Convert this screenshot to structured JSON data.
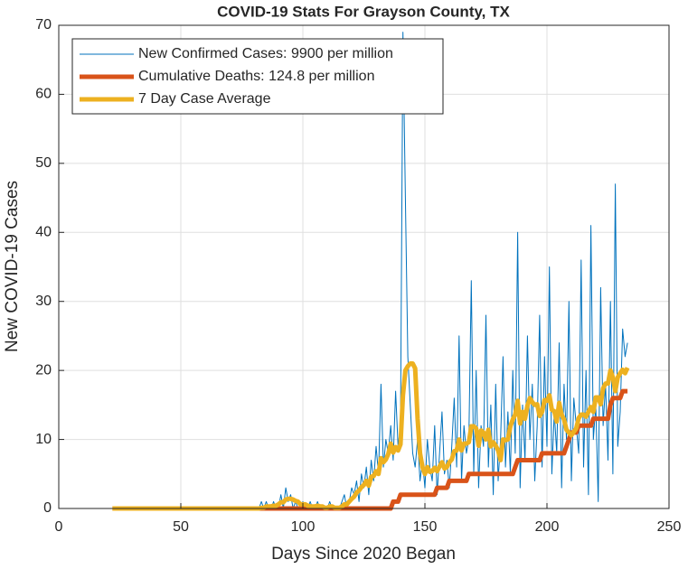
{
  "chart_data": {
    "type": "line",
    "title": "COVID-19 Stats For Grayson County, TX",
    "xlabel": "Days Since 2020 Began",
    "ylabel": "New COVID-19 Cases",
    "xlim": [
      0,
      250
    ],
    "xticks": [
      0,
      50,
      100,
      150,
      200,
      250
    ],
    "ylim": [
      0,
      70
    ],
    "yticks": [
      0,
      10,
      20,
      30,
      40,
      50,
      60,
      70
    ],
    "grid": true,
    "legend_position": "northwest",
    "x": [
      22,
      40,
      60,
      80,
      81,
      82,
      83,
      84,
      85,
      86,
      87,
      88,
      89,
      90,
      91,
      92,
      93,
      94,
      95,
      96,
      97,
      98,
      99,
      100,
      101,
      102,
      103,
      104,
      105,
      106,
      107,
      108,
      109,
      110,
      111,
      112,
      113,
      114,
      115,
      116,
      117,
      118,
      119,
      120,
      121,
      122,
      123,
      124,
      125,
      126,
      127,
      128,
      129,
      130,
      131,
      132,
      133,
      134,
      135,
      136,
      137,
      138,
      139,
      140,
      141,
      142,
      143,
      144,
      145,
      146,
      147,
      148,
      149,
      150,
      151,
      152,
      153,
      154,
      155,
      156,
      157,
      158,
      159,
      160,
      161,
      162,
      163,
      164,
      165,
      166,
      167,
      168,
      169,
      170,
      171,
      172,
      173,
      174,
      175,
      176,
      177,
      178,
      179,
      180,
      181,
      182,
      183,
      184,
      185,
      186,
      187,
      188,
      189,
      190,
      191,
      192,
      193,
      194,
      195,
      196,
      197,
      198,
      199,
      200,
      201,
      202,
      203,
      204,
      205,
      206,
      207,
      208,
      209,
      210,
      211,
      212,
      213,
      214,
      215,
      216,
      217,
      218,
      219,
      220,
      221,
      222,
      223,
      224,
      225,
      226,
      227,
      228,
      229,
      230,
      231,
      232,
      233
    ],
    "series": [
      {
        "name": "New Confirmed Cases: 9900 per million",
        "color": "#0072bd",
        "width": 1,
        "values": [
          0,
          0,
          0,
          0,
          0,
          0,
          1,
          0,
          1,
          0,
          0,
          1,
          0,
          0,
          2,
          0,
          3,
          1,
          2,
          0,
          1,
          0,
          0,
          1,
          0,
          0,
          1,
          0,
          0,
          1,
          0,
          0,
          0,
          0,
          1,
          0,
          0,
          0,
          0,
          1,
          2,
          0,
          1,
          3,
          2,
          4,
          1,
          5,
          3,
          6,
          2,
          7,
          4,
          9,
          5,
          18,
          6,
          10,
          8,
          12,
          7,
          17,
          9,
          12,
          69,
          45,
          22,
          15,
          8,
          6,
          10,
          4,
          7,
          3,
          10,
          6,
          4,
          12,
          2,
          8,
          14,
          5,
          7,
          3,
          9,
          16,
          6,
          25,
          4,
          12,
          8,
          10,
          33,
          5,
          20,
          3,
          12,
          9,
          28,
          6,
          15,
          2,
          18,
          4,
          10,
          22,
          6,
          14,
          5,
          20,
          8,
          40,
          3,
          15,
          7,
          25,
          10,
          18,
          4,
          12,
          28,
          6,
          22,
          9,
          35,
          5,
          14,
          8,
          24,
          3,
          18,
          10,
          30,
          4,
          16,
          12,
          8,
          36,
          6,
          20,
          2,
          41,
          10,
          15,
          1,
          32,
          12,
          18,
          7,
          30,
          5,
          47,
          9,
          14,
          26,
          22,
          24
        ]
      },
      {
        "name": "Cumulative Deaths: 124.8 per million",
        "color": "#d95319",
        "width": 5,
        "values": [
          0,
          0,
          0,
          0,
          0,
          0,
          0,
          0,
          0,
          0,
          0,
          0,
          0,
          0,
          0,
          0,
          0,
          0,
          0,
          0,
          0,
          0,
          0,
          0,
          0,
          0,
          0,
          0,
          0,
          0,
          0,
          0,
          0,
          0,
          0,
          0,
          0,
          0,
          0,
          0,
          0,
          0,
          0,
          0,
          0,
          0,
          0,
          0,
          0,
          0,
          0,
          0,
          0,
          0,
          0,
          0,
          0,
          0,
          0,
          0,
          1,
          1,
          1,
          2,
          2,
          2,
          2,
          2,
          2,
          2,
          2,
          2,
          2,
          2,
          2,
          2,
          2,
          2,
          3,
          3,
          3,
          3,
          3,
          4,
          4,
          4,
          4,
          4,
          4,
          4,
          4,
          5,
          5,
          5,
          5,
          5,
          5,
          5,
          5,
          5,
          5,
          5,
          5,
          5,
          5,
          5,
          5,
          5,
          5,
          5,
          6,
          7,
          7,
          7,
          7,
          7,
          7,
          7,
          7,
          7,
          7,
          8,
          8,
          8,
          8,
          8,
          8,
          8,
          8,
          8,
          8,
          9,
          10,
          11,
          11,
          11,
          12,
          12,
          12,
          12,
          12,
          12,
          13,
          13,
          13,
          13,
          13,
          13,
          13,
          15,
          16,
          16,
          16,
          16,
          17,
          17,
          17
        ]
      },
      {
        "name": "7 Day Case Average",
        "color": "#edb120",
        "width": 5,
        "values": [
          0,
          0,
          0,
          0,
          0,
          0,
          0.1,
          0.1,
          0.3,
          0.3,
          0.3,
          0.4,
          0.4,
          0.6,
          0.9,
          0.9,
          1.3,
          1.4,
          1.4,
          1.3,
          1.1,
          1.0,
          0.6,
          0.6,
          0.6,
          0.4,
          0.3,
          0.3,
          0.3,
          0.4,
          0.3,
          0.3,
          0.1,
          0.1,
          0.3,
          0.3,
          0.1,
          0.1,
          0.1,
          0.3,
          0.6,
          0.6,
          1.0,
          1.4,
          1.7,
          2.3,
          2.6,
          3.1,
          3.4,
          4.0,
          3.3,
          4.6,
          4.7,
          5.4,
          5.0,
          7.3,
          6.7,
          7.1,
          7.9,
          9.4,
          8.1,
          8.9,
          8.4,
          9.3,
          16.4,
          20.0,
          20.6,
          21.0,
          21.0,
          20.3,
          13.0,
          8.0,
          6.0,
          5.0,
          6.0,
          5.3,
          5.4,
          5.9,
          5.4,
          6.1,
          6.7,
          5.8,
          6.0,
          6.7,
          7.1,
          8.3,
          8.4,
          10.0,
          8.4,
          9.4,
          9.4,
          9.6,
          11.9,
          11.9,
          11.6,
          9.1,
          11.3,
          11.0,
          10.0,
          11.4,
          9.0,
          9.6,
          9.1,
          8.4,
          7.0,
          10.0,
          9.9,
          10.0,
          11.9,
          12.9,
          13.6,
          15.6,
          12.3,
          14.0,
          13.0,
          14.9,
          16.0,
          15.4,
          15.0,
          15.1,
          13.4,
          14.0,
          15.7,
          15.6,
          16.4,
          14.3,
          14.1,
          12.6,
          15.3,
          13.6,
          12.9,
          11.4,
          11.0,
          10.6,
          11.1,
          11.6,
          13.1,
          13.6,
          13.6,
          13.3,
          14.0,
          14.7,
          14.0,
          16.1,
          16.1,
          15.1,
          17.4,
          18.1,
          18.1,
          20.0,
          19.0,
          17.0,
          19.0,
          19.6,
          20.1,
          19.6,
          20.4
        ]
      }
    ]
  }
}
